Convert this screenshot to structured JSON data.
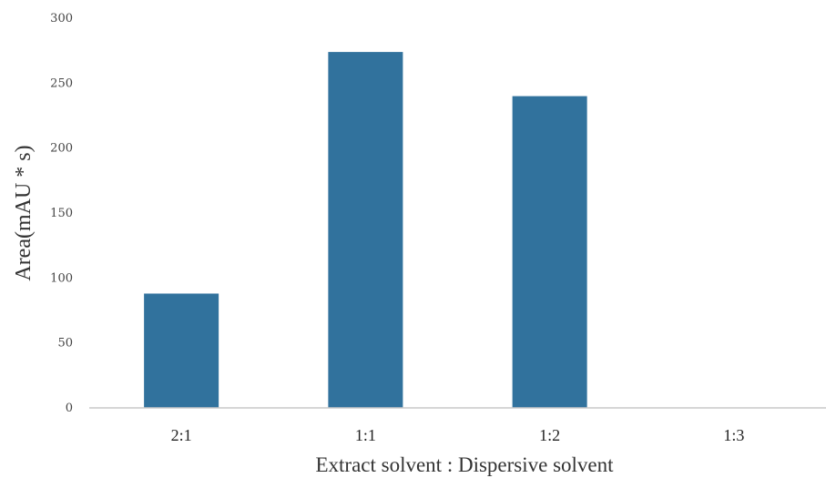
{
  "colors": {
    "bar": "#31729d",
    "axis_line": "#c8c8c8",
    "text": "#333333"
  },
  "chart_data": {
    "type": "bar",
    "title": "",
    "xlabel": "Extract solvent : Dispersive solvent",
    "ylabel": "Area(mAU * s)",
    "categories": [
      "2:1",
      "1:1",
      "1:2",
      "1:3"
    ],
    "values": [
      88,
      274,
      240,
      0
    ],
    "ylim": [
      0,
      300
    ],
    "yticks": [
      0,
      50,
      100,
      150,
      200,
      250,
      300
    ],
    "grid": false,
    "legend": "none"
  }
}
